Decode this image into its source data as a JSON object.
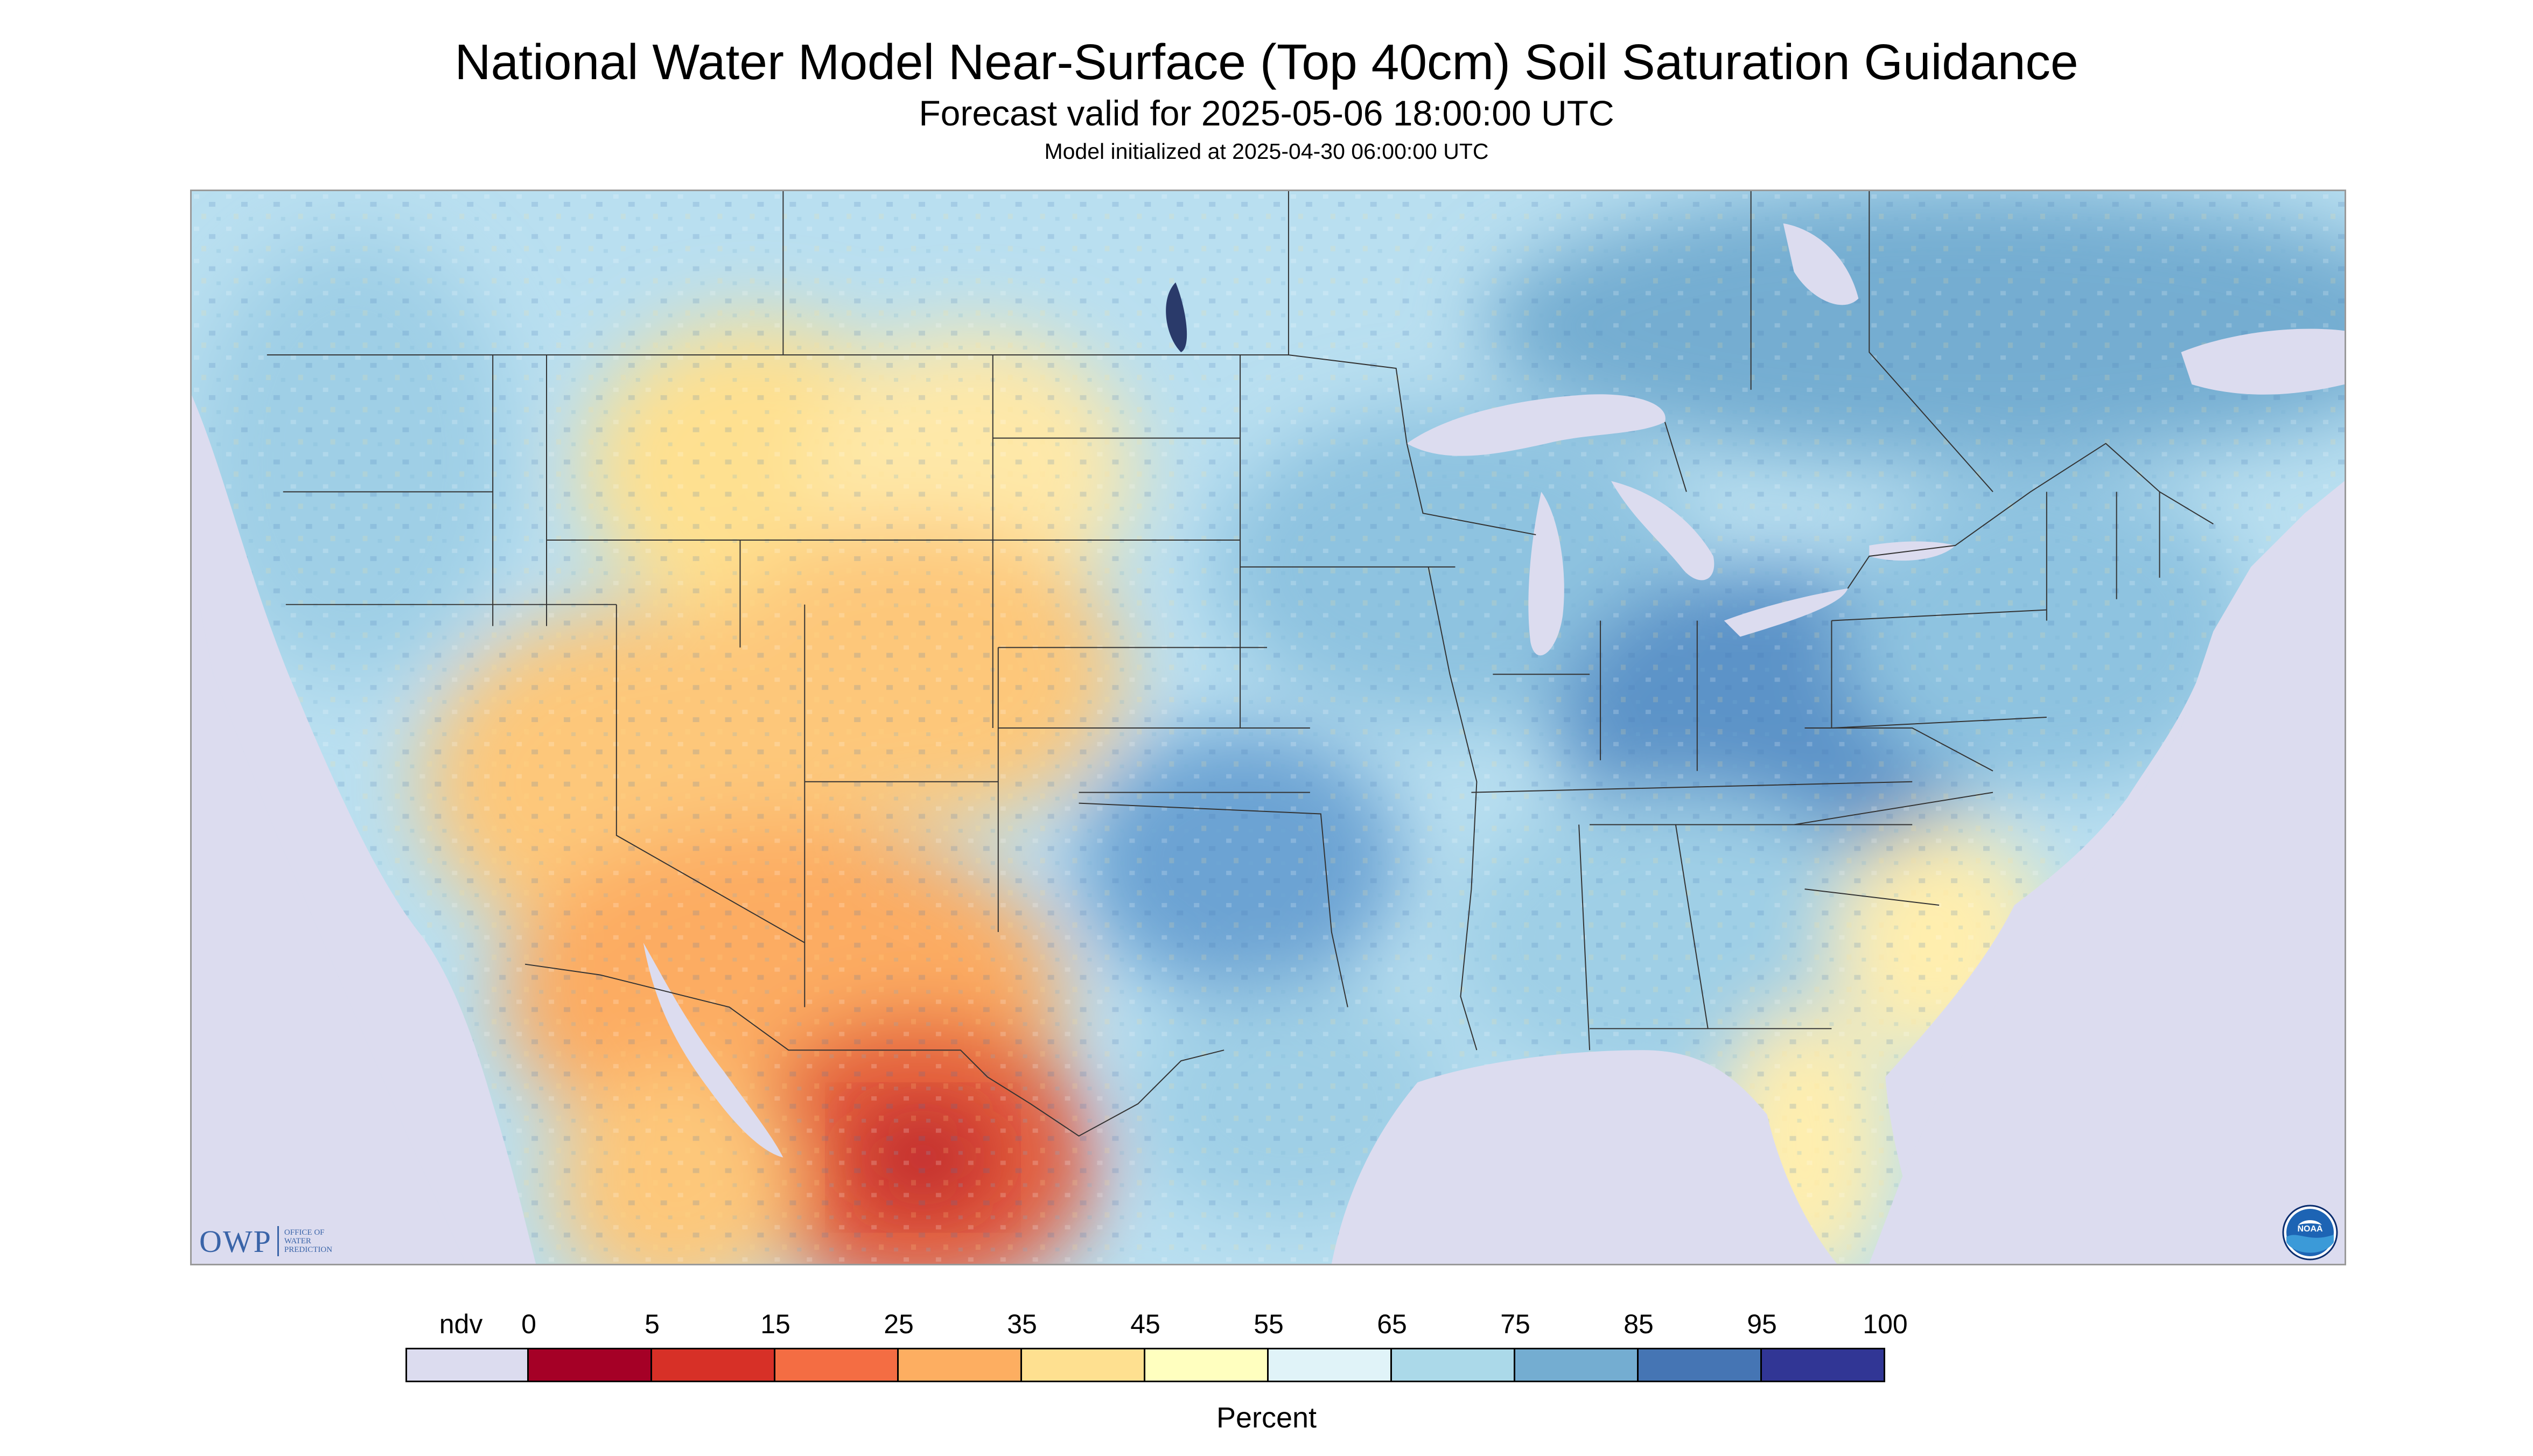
{
  "title": "National Water Model Near-Surface (Top 40cm) Soil Saturation Guidance",
  "subtitle": "Forecast valid for 2025-05-06 18:00:00 UTC",
  "model_init": "Model initialized at 2025-04-30 06:00:00 UTC",
  "logos": {
    "owp_mark": "OWP",
    "owp_text": "OFFICE OF WATER PREDICTION",
    "noaa_text": "NOAA"
  },
  "legend": {
    "unit": "Percent",
    "ndv_label": "ndv",
    "ndv_color": "#dcdcef",
    "boundaries": [
      "0",
      "5",
      "15",
      "25",
      "35",
      "45",
      "55",
      "65",
      "75",
      "85",
      "95",
      "100"
    ],
    "colors": [
      "#a50026",
      "#d73027",
      "#f46d43",
      "#fdae61",
      "#fee090",
      "#ffffbf",
      "#e0f3f8",
      "#abd9e9",
      "#74add1",
      "#4575b4",
      "#313695"
    ]
  },
  "map": {
    "nodata_color": "#dcdcef",
    "water_color": "#dcdcef",
    "region_soil_saturation_percent": {
      "northwest": 70,
      "northern_rockies": 45,
      "northern_plains": 55,
      "upper_midwest": 72,
      "great_lakes": 78,
      "ohio_valley": 85,
      "northeast": 75,
      "southeast_coast": 50,
      "florida": 45,
      "southern_plains": 85,
      "great_basin": 35,
      "southwest": 25,
      "northwest_mexico": 10,
      "canada_east": 80
    }
  }
}
